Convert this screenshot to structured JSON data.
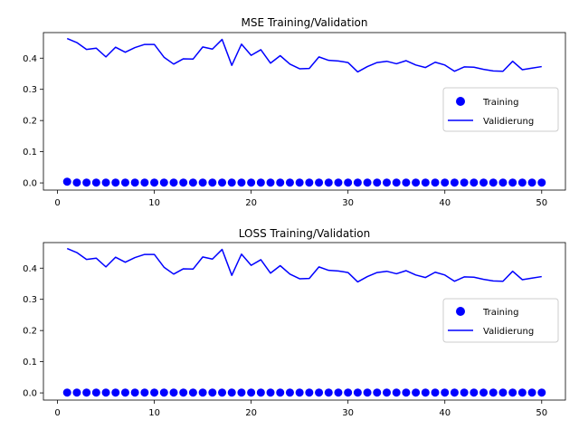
{
  "chart_data": [
    {
      "type": "scatter",
      "title": "MSE Training/Validation",
      "xlabel": "",
      "ylabel": "",
      "xlim": [
        -1.45,
        52.45
      ],
      "ylim": [
        -0.023,
        0.482
      ],
      "xticks": [
        0,
        10,
        20,
        30,
        40,
        50
      ],
      "yticks": [
        0.0,
        0.1,
        0.2,
        0.3,
        0.4
      ],
      "grid": false,
      "legend_position": "center-right",
      "series": [
        {
          "name": "Training",
          "type": "scatter",
          "color": "#0000ff",
          "x": [
            1,
            2,
            3,
            4,
            5,
            6,
            7,
            8,
            9,
            10,
            11,
            12,
            13,
            14,
            15,
            16,
            17,
            18,
            19,
            20,
            21,
            22,
            23,
            24,
            25,
            26,
            27,
            28,
            29,
            30,
            31,
            32,
            33,
            34,
            35,
            36,
            37,
            38,
            39,
            40,
            41,
            42,
            43,
            44,
            45,
            46,
            47,
            48,
            49,
            50
          ],
          "y": [
            0.004,
            0.001,
            0.001,
            0.001,
            0.001,
            0.001,
            0.001,
            0.001,
            0.001,
            0.001,
            0.001,
            0.001,
            0.001,
            0.001,
            0.001,
            0.001,
            0.001,
            0.001,
            0.001,
            0.001,
            0.001,
            0.001,
            0.001,
            0.001,
            0.001,
            0.001,
            0.001,
            0.001,
            0.001,
            0.001,
            0.001,
            0.001,
            0.001,
            0.001,
            0.001,
            0.001,
            0.001,
            0.001,
            0.001,
            0.001,
            0.001,
            0.001,
            0.001,
            0.001,
            0.001,
            0.001,
            0.001,
            0.001,
            0.001,
            0.001
          ]
        },
        {
          "name": "Validierung",
          "type": "line",
          "color": "#0000ff",
          "x": [
            1,
            2,
            3,
            4,
            5,
            6,
            7,
            8,
            9,
            10,
            11,
            12,
            13,
            14,
            15,
            16,
            17,
            18,
            19,
            20,
            21,
            22,
            23,
            24,
            25,
            26,
            27,
            28,
            29,
            30,
            31,
            32,
            33,
            34,
            35,
            36,
            37,
            38,
            39,
            40,
            41,
            42,
            43,
            44,
            45,
            46,
            47,
            48,
            49,
            50
          ],
          "y": [
            0.463,
            0.45,
            0.428,
            0.432,
            0.404,
            0.435,
            0.419,
            0.434,
            0.444,
            0.444,
            0.403,
            0.381,
            0.398,
            0.397,
            0.436,
            0.429,
            0.46,
            0.377,
            0.445,
            0.409,
            0.427,
            0.384,
            0.408,
            0.381,
            0.366,
            0.367,
            0.404,
            0.393,
            0.391,
            0.386,
            0.356,
            0.373,
            0.386,
            0.39,
            0.382,
            0.392,
            0.378,
            0.37,
            0.387,
            0.378,
            0.358,
            0.372,
            0.371,
            0.364,
            0.359,
            0.358,
            0.39,
            0.363,
            0.368,
            0.373
          ]
        }
      ]
    },
    {
      "type": "scatter",
      "title": "LOSS Training/Validation",
      "xlabel": "",
      "ylabel": "",
      "xlim": [
        -1.45,
        52.45
      ],
      "ylim": [
        -0.023,
        0.482
      ],
      "xticks": [
        0,
        10,
        20,
        30,
        40,
        50
      ],
      "yticks": [
        0.0,
        0.1,
        0.2,
        0.3,
        0.4
      ],
      "grid": false,
      "legend_position": "center-right",
      "series": [
        {
          "name": "Training",
          "type": "scatter",
          "color": "#0000ff",
          "x": [
            1,
            2,
            3,
            4,
            5,
            6,
            7,
            8,
            9,
            10,
            11,
            12,
            13,
            14,
            15,
            16,
            17,
            18,
            19,
            20,
            21,
            22,
            23,
            24,
            25,
            26,
            27,
            28,
            29,
            30,
            31,
            32,
            33,
            34,
            35,
            36,
            37,
            38,
            39,
            40,
            41,
            42,
            43,
            44,
            45,
            46,
            47,
            48,
            49,
            50
          ],
          "y": [
            0.001,
            0.001,
            0.001,
            0.001,
            0.001,
            0.001,
            0.001,
            0.001,
            0.001,
            0.001,
            0.001,
            0.001,
            0.001,
            0.001,
            0.001,
            0.001,
            0.001,
            0.001,
            0.001,
            0.001,
            0.001,
            0.001,
            0.001,
            0.001,
            0.001,
            0.001,
            0.001,
            0.001,
            0.001,
            0.001,
            0.001,
            0.001,
            0.001,
            0.001,
            0.001,
            0.001,
            0.001,
            0.001,
            0.001,
            0.001,
            0.001,
            0.001,
            0.001,
            0.001,
            0.001,
            0.001,
            0.001,
            0.001,
            0.001,
            0.001
          ]
        },
        {
          "name": "Validierung",
          "type": "line",
          "color": "#0000ff",
          "x": [
            1,
            2,
            3,
            4,
            5,
            6,
            7,
            8,
            9,
            10,
            11,
            12,
            13,
            14,
            15,
            16,
            17,
            18,
            19,
            20,
            21,
            22,
            23,
            24,
            25,
            26,
            27,
            28,
            29,
            30,
            31,
            32,
            33,
            34,
            35,
            36,
            37,
            38,
            39,
            40,
            41,
            42,
            43,
            44,
            45,
            46,
            47,
            48,
            49,
            50
          ],
          "y": [
            0.463,
            0.45,
            0.428,
            0.432,
            0.404,
            0.435,
            0.419,
            0.434,
            0.444,
            0.444,
            0.403,
            0.381,
            0.398,
            0.397,
            0.436,
            0.429,
            0.46,
            0.377,
            0.445,
            0.409,
            0.427,
            0.384,
            0.408,
            0.381,
            0.366,
            0.367,
            0.404,
            0.393,
            0.391,
            0.386,
            0.356,
            0.373,
            0.386,
            0.39,
            0.382,
            0.392,
            0.378,
            0.37,
            0.387,
            0.378,
            0.358,
            0.372,
            0.371,
            0.364,
            0.359,
            0.358,
            0.39,
            0.363,
            0.368,
            0.373
          ]
        }
      ]
    }
  ]
}
